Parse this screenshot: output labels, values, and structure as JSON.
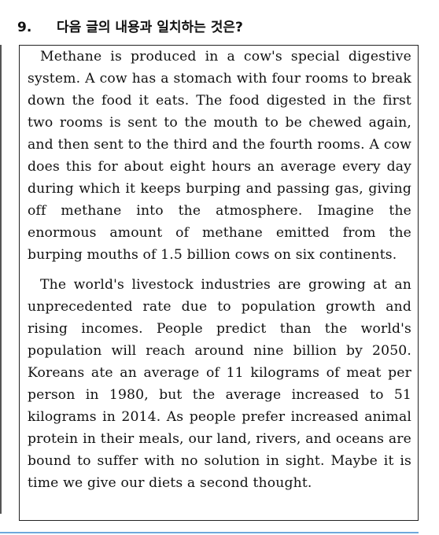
{
  "question": {
    "number": "9.",
    "prompt": "다음 글의 내용과 일치하는 것은?"
  },
  "passage": {
    "paragraphs": [
      "Methane is produced in a cow's special digestive system. A cow has a stomach with four rooms to break down the food it eats. The food digested in the first two rooms is sent to the mouth to be chewed again, and then sent to the third and the fourth rooms. A cow does this for about eight hours an average every day during which it keeps burping and passing gas, giving off methane into the atmosphere. Imagine the enormous amount of methane emitted from the burping mouths of 1.5 billion cows on six continents.",
      "The world's livestock industries are growing at an unprecedented rate due to population growth and rising incomes. People predict than the  world's population will reach around nine billion by 2050. Koreans ate an average of 11 kilograms of meat per person in 1980, but the average increased to 51 kilograms in 2014. As people prefer increased animal protein in their meals, our land, rivers, and oceans are bound to suffer with no solution in sight. Maybe it is time we give our diets a second thought."
    ]
  }
}
